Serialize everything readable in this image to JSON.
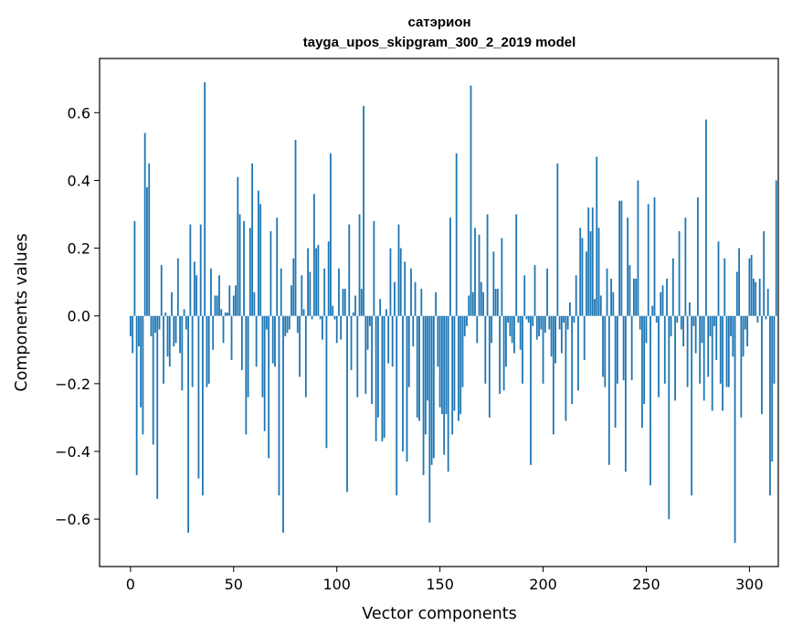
{
  "chart_data": {
    "type": "bar",
    "title_line1": "сатэрион",
    "title_line2": "tayga_upos_skipgram_300_2_2019 model",
    "xlabel": "Vector components",
    "ylabel": "Components values",
    "xlim": [
      -15,
      314
    ],
    "ylim": [
      -0.74,
      0.76
    ],
    "x_ticks": [
      {
        "value": 0,
        "label": "0"
      },
      {
        "value": 50,
        "label": "50"
      },
      {
        "value": 100,
        "label": "100"
      },
      {
        "value": 150,
        "label": "150"
      },
      {
        "value": 200,
        "label": "200"
      },
      {
        "value": 250,
        "label": "250"
      },
      {
        "value": 300,
        "label": "300"
      }
    ],
    "y_ticks": [
      {
        "value": -0.6,
        "label": "−0.6"
      },
      {
        "value": -0.4,
        "label": "−0.4"
      },
      {
        "value": -0.2,
        "label": "−0.2"
      },
      {
        "value": 0.0,
        "label": "0.0"
      },
      {
        "value": 0.2,
        "label": "0.2"
      },
      {
        "value": 0.4,
        "label": "0.4"
      },
      {
        "value": 0.6,
        "label": "0.6"
      }
    ],
    "bar_color": "#1f77b4",
    "values": [
      -0.06,
      -0.11,
      0.28,
      -0.47,
      -0.09,
      -0.27,
      -0.35,
      0.54,
      0.38,
      0.45,
      -0.06,
      -0.38,
      -0.05,
      -0.54,
      -0.04,
      0.15,
      -0.2,
      0.01,
      -0.12,
      -0.15,
      0.07,
      -0.09,
      -0.08,
      0.17,
      -0.11,
      -0.22,
      0.02,
      -0.04,
      -0.64,
      0.27,
      -0.21,
      0.16,
      0.12,
      -0.48,
      0.27,
      -0.53,
      0.69,
      -0.21,
      -0.2,
      0.14,
      -0.1,
      0.06,
      0.06,
      0.12,
      0.02,
      -0.08,
      0.01,
      0.01,
      0.09,
      -0.13,
      0.06,
      0.09,
      0.41,
      0.3,
      -0.16,
      0.28,
      -0.35,
      -0.24,
      0.26,
      0.45,
      0.07,
      -0.15,
      0.37,
      0.33,
      -0.24,
      -0.34,
      -0.04,
      -0.42,
      0.25,
      -0.14,
      -0.15,
      0.29,
      -0.53,
      0.14,
      -0.64,
      -0.06,
      -0.05,
      -0.04,
      0.09,
      0.17,
      0.52,
      -0.05,
      -0.18,
      0.12,
      0.02,
      -0.24,
      0.2,
      0.13,
      -0.01,
      0.36,
      0.2,
      0.21,
      -0.01,
      -0.07,
      0.14,
      -0.39,
      0.22,
      0.48,
      0.03,
      -0.01,
      -0.08,
      0.14,
      -0.07,
      0.08,
      0.08,
      -0.52,
      0.27,
      -0.16,
      0.01,
      0.06,
      -0.24,
      0.3,
      0.08,
      0.62,
      -0.23,
      -0.1,
      -0.03,
      -0.26,
      0.28,
      -0.37,
      -0.3,
      0.05,
      -0.37,
      -0.36,
      0.02,
      -0.14,
      0.2,
      -0.15,
      0.1,
      -0.53,
      0.27,
      0.2,
      -0.4,
      0.16,
      -0.43,
      -0.21,
      0.14,
      -0.09,
      0.1,
      -0.3,
      -0.31,
      0.08,
      -0.47,
      -0.35,
      -0.25,
      -0.61,
      -0.44,
      -0.42,
      0.07,
      -0.15,
      -0.27,
      -0.29,
      -0.41,
      -0.29,
      -0.46,
      0.29,
      -0.35,
      -0.28,
      0.48,
      -0.31,
      -0.29,
      -0.21,
      -0.06,
      -0.03,
      0.06,
      0.68,
      0.07,
      0.26,
      -0.08,
      0.24,
      0.1,
      0.07,
      -0.2,
      0.3,
      -0.3,
      -0.08,
      0.19,
      0.08,
      0.08,
      -0.23,
      0.23,
      -0.22,
      -0.15,
      -0.02,
      -0.06,
      -0.08,
      -0.11,
      0.3,
      -0.02,
      -0.1,
      -0.2,
      0.12,
      -0.01,
      -0.02,
      -0.44,
      -0.03,
      0.15,
      -0.07,
      -0.06,
      -0.04,
      -0.2,
      -0.05,
      0.14,
      -0.04,
      -0.12,
      -0.35,
      -0.14,
      0.45,
      -0.04,
      -0.11,
      -0.02,
      -0.31,
      -0.04,
      0.04,
      -0.26,
      -0.02,
      0.12,
      -0.22,
      0.26,
      0.23,
      -0.13,
      0.19,
      0.32,
      0.25,
      0.32,
      0.05,
      0.47,
      0.26,
      0.06,
      -0.18,
      -0.21,
      0.14,
      -0.44,
      0.11,
      0.07,
      -0.33,
      -0.2,
      0.34,
      0.34,
      -0.19,
      -0.46,
      0.29,
      0.15,
      -0.19,
      0.11,
      0.11,
      0.4,
      -0.04,
      -0.33,
      -0.26,
      -0.08,
      0.33,
      -0.5,
      0.03,
      0.35,
      -0.02,
      -0.24,
      0.07,
      0.09,
      -0.2,
      0.11,
      -0.6,
      -0.06,
      0.17,
      -0.25,
      -0.02,
      0.25,
      -0.04,
      -0.09,
      0.29,
      -0.21,
      0.04,
      -0.53,
      -0.03,
      -0.11,
      0.35,
      -0.2,
      -0.08,
      -0.25,
      0.58,
      -0.18,
      -0.06,
      -0.28,
      -0.03,
      -0.13,
      0.22,
      -0.2,
      -0.28,
      0.17,
      -0.21,
      -0.21,
      -0.06,
      -0.12,
      -0.67,
      0.13,
      0.2,
      -0.3,
      -0.12,
      -0.04,
      -0.09,
      0.17,
      0.18,
      0.11,
      0.1,
      -0.02,
      0.11,
      -0.29,
      0.25,
      -0.01,
      0.08,
      -0.53,
      -0.43,
      -0.2,
      0.4
    ]
  }
}
